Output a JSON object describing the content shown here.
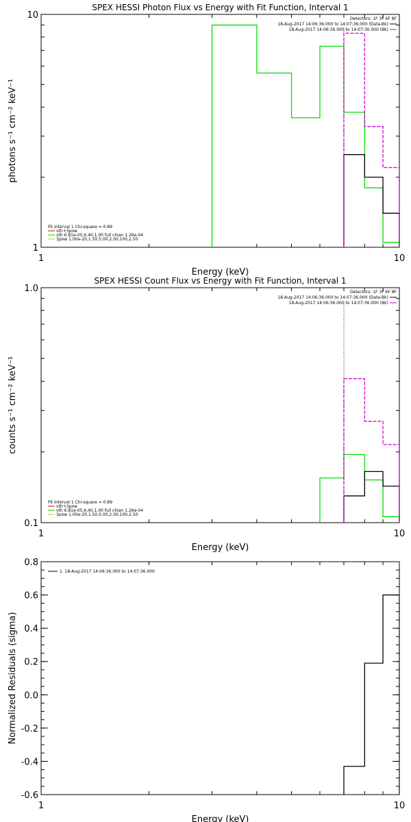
{
  "chart_data": [
    {
      "type": "line",
      "title": "SPEX HESSI Photon Flux vs Energy with Fit Function, Interval 1",
      "xlabel": "Energy (keV)",
      "ylabel": "photons s⁻¹ cm⁻² keV⁻¹",
      "x_scale": "log",
      "y_scale": "log",
      "xlim": [
        1,
        10
      ],
      "ylim": [
        1,
        10
      ],
      "x_ticks": [
        {
          "value": 1,
          "label": "1"
        },
        {
          "value": 10,
          "label": "10"
        }
      ],
      "y_ticks": [
        {
          "value": 1,
          "label": "1"
        },
        {
          "value": 10,
          "label": "10"
        }
      ],
      "top_right_legend": {
        "header": "Detectors: 1F 3F 6F 8F",
        "entries": [
          {
            "label": "18-Aug-2017 14:06:36.000 to 14:07:36.000 (Data-Bk)",
            "color": "#000000"
          },
          {
            "label": "18-Aug-2017 14:06:36.000 to 14:07:36.000 (Bk)",
            "color": "#cc00cc"
          }
        ]
      },
      "bottom_left_legend": {
        "header": "Fit Interval  1    Chi-square = 0.89",
        "entries": [
          {
            "label": "vth+3pow",
            "color": "#cc0000"
          },
          {
            "label": "vth 6.81e-05,6.40,1.00  full chian 1.26e-04",
            "color": "#00cc00"
          },
          {
            "label": "3pow 1.00e-20,1.50,5.00,2.00,100,2.50",
            "color": "#cccc00"
          }
        ]
      },
      "vline_x": 7.0,
      "series": [
        {
          "color": "#00dd00",
          "bins": [
            {
              "x0": 3.0,
              "x1": 4.0,
              "y": 9.0
            },
            {
              "x0": 4.0,
              "x1": 5.0,
              "y": 5.6
            },
            {
              "x0": 5.0,
              "x1": 6.0,
              "y": 3.6
            },
            {
              "x0": 6.0,
              "x1": 7.0,
              "y": 7.3
            },
            {
              "x0": 7.0,
              "x1": 8.0,
              "y": 3.8
            },
            {
              "x0": 8.0,
              "x1": 9.0,
              "y": 1.8
            },
            {
              "x0": 9.0,
              "x1": 10.0,
              "y": 1.05
            }
          ]
        },
        {
          "color": "#000000",
          "bins": [
            {
              "x0": 7.0,
              "x1": 8.0,
              "y": 2.5
            },
            {
              "x0": 8.0,
              "x1": 9.0,
              "y": 2.0
            },
            {
              "x0": 9.0,
              "x1": 10.0,
              "y": 1.4
            }
          ]
        },
        {
          "color": "#cc00cc",
          "bins": [
            {
              "x0": 7.0,
              "x1": 8.0,
              "y": 8.3
            },
            {
              "x0": 8.0,
              "x1": 9.0,
              "y": 3.3
            },
            {
              "x0": 9.0,
              "x1": 10.0,
              "y": 2.2
            }
          ]
        }
      ]
    },
    {
      "type": "line",
      "title": "SPEX HESSI Count Flux vs Energy with Fit Function, Interval 1",
      "xlabel": "Energy (keV)",
      "ylabel": "counts s⁻¹ cm⁻² keV⁻¹",
      "x_scale": "log",
      "y_scale": "log",
      "xlim": [
        1,
        10
      ],
      "ylim": [
        0.1,
        1.0
      ],
      "x_ticks": [
        {
          "value": 1,
          "label": "1"
        },
        {
          "value": 10,
          "label": "10"
        }
      ],
      "y_ticks": [
        {
          "value": 0.1,
          "label": "0.1"
        },
        {
          "value": 1.0,
          "label": "1.0"
        }
      ],
      "top_right_legend": {
        "header": "Detectors: 1F 3F 6F 8F",
        "entries": [
          {
            "label": "18-Aug-2017 14:06:36.000 to 14:07:36.000 (Data-Bk)",
            "color": "#000000"
          },
          {
            "label": "18-Aug-2017 14:06:36.000 to 14:07:36.000 (Bk)",
            "color": "#cc00cc"
          }
        ]
      },
      "bottom_left_legend": {
        "header": "Fit Interval  1    Chi-square = 0.89",
        "entries": [
          {
            "label": "vth+3pow",
            "color": "#cc0000"
          },
          {
            "label": "vth 6.81e-05,6.40,1.00  full chian 1.26e-04",
            "color": "#00cc00"
          },
          {
            "label": "3pow 1.00e-20,1.50,5.00,2.00,100,2.50",
            "color": "#cccc00"
          }
        ]
      },
      "vline_x": 7.0,
      "series": [
        {
          "color": "#00dd00",
          "bins": [
            {
              "x0": 6.0,
              "x1": 7.0,
              "y": 0.155
            },
            {
              "x0": 7.0,
              "x1": 8.0,
              "y": 0.195
            },
            {
              "x0": 8.0,
              "x1": 9.0,
              "y": 0.152
            },
            {
              "x0": 9.0,
              "x1": 10.0,
              "y": 0.106
            }
          ]
        },
        {
          "color": "#000000",
          "bins": [
            {
              "x0": 7.0,
              "x1": 8.0,
              "y": 0.13
            },
            {
              "x0": 8.0,
              "x1": 9.0,
              "y": 0.165
            },
            {
              "x0": 9.0,
              "x1": 10.0,
              "y": 0.143
            }
          ]
        },
        {
          "color": "#cc00cc",
          "bins": [
            {
              "x0": 7.0,
              "x1": 8.0,
              "y": 0.41
            },
            {
              "x0": 8.0,
              "x1": 9.0,
              "y": 0.27
            },
            {
              "x0": 9.0,
              "x1": 10.0,
              "y": 0.215
            }
          ]
        }
      ]
    },
    {
      "type": "line",
      "title": "",
      "xlabel": "Energy (keV)",
      "ylabel": "Normalized Residuals (sigma)",
      "x_scale": "log",
      "y_scale": "linear",
      "xlim": [
        1,
        10
      ],
      "ylim": [
        -0.6,
        0.8
      ],
      "x_ticks": [
        {
          "value": 1,
          "label": "1"
        },
        {
          "value": 10,
          "label": "10"
        }
      ],
      "y_ticks": [
        {
          "value": 0.8,
          "label": "0.8"
        },
        {
          "value": 0.6,
          "label": "0.6"
        },
        {
          "value": 0.4,
          "label": "0.4"
        },
        {
          "value": 0.2,
          "label": "0.2"
        },
        {
          "value": 0.0,
          "label": "0.0"
        },
        {
          "value": -0.2,
          "label": "-0.2"
        },
        {
          "value": -0.4,
          "label": "-0.4"
        },
        {
          "value": -0.6,
          "label": "-0.6"
        }
      ],
      "top_left_legend": {
        "entries": [
          {
            "label": "1. 18-Aug-2017 14:06:36.000 to 14:07:36.000",
            "color": "#000000"
          }
        ]
      },
      "series": [
        {
          "color": "#000000",
          "bins": [
            {
              "x0": 7.0,
              "x1": 8.0,
              "y": -0.43
            },
            {
              "x0": 8.0,
              "x1": 9.0,
              "y": 0.19
            },
            {
              "x0": 9.0,
              "x1": 10.0,
              "y": 0.6
            }
          ]
        }
      ]
    }
  ]
}
